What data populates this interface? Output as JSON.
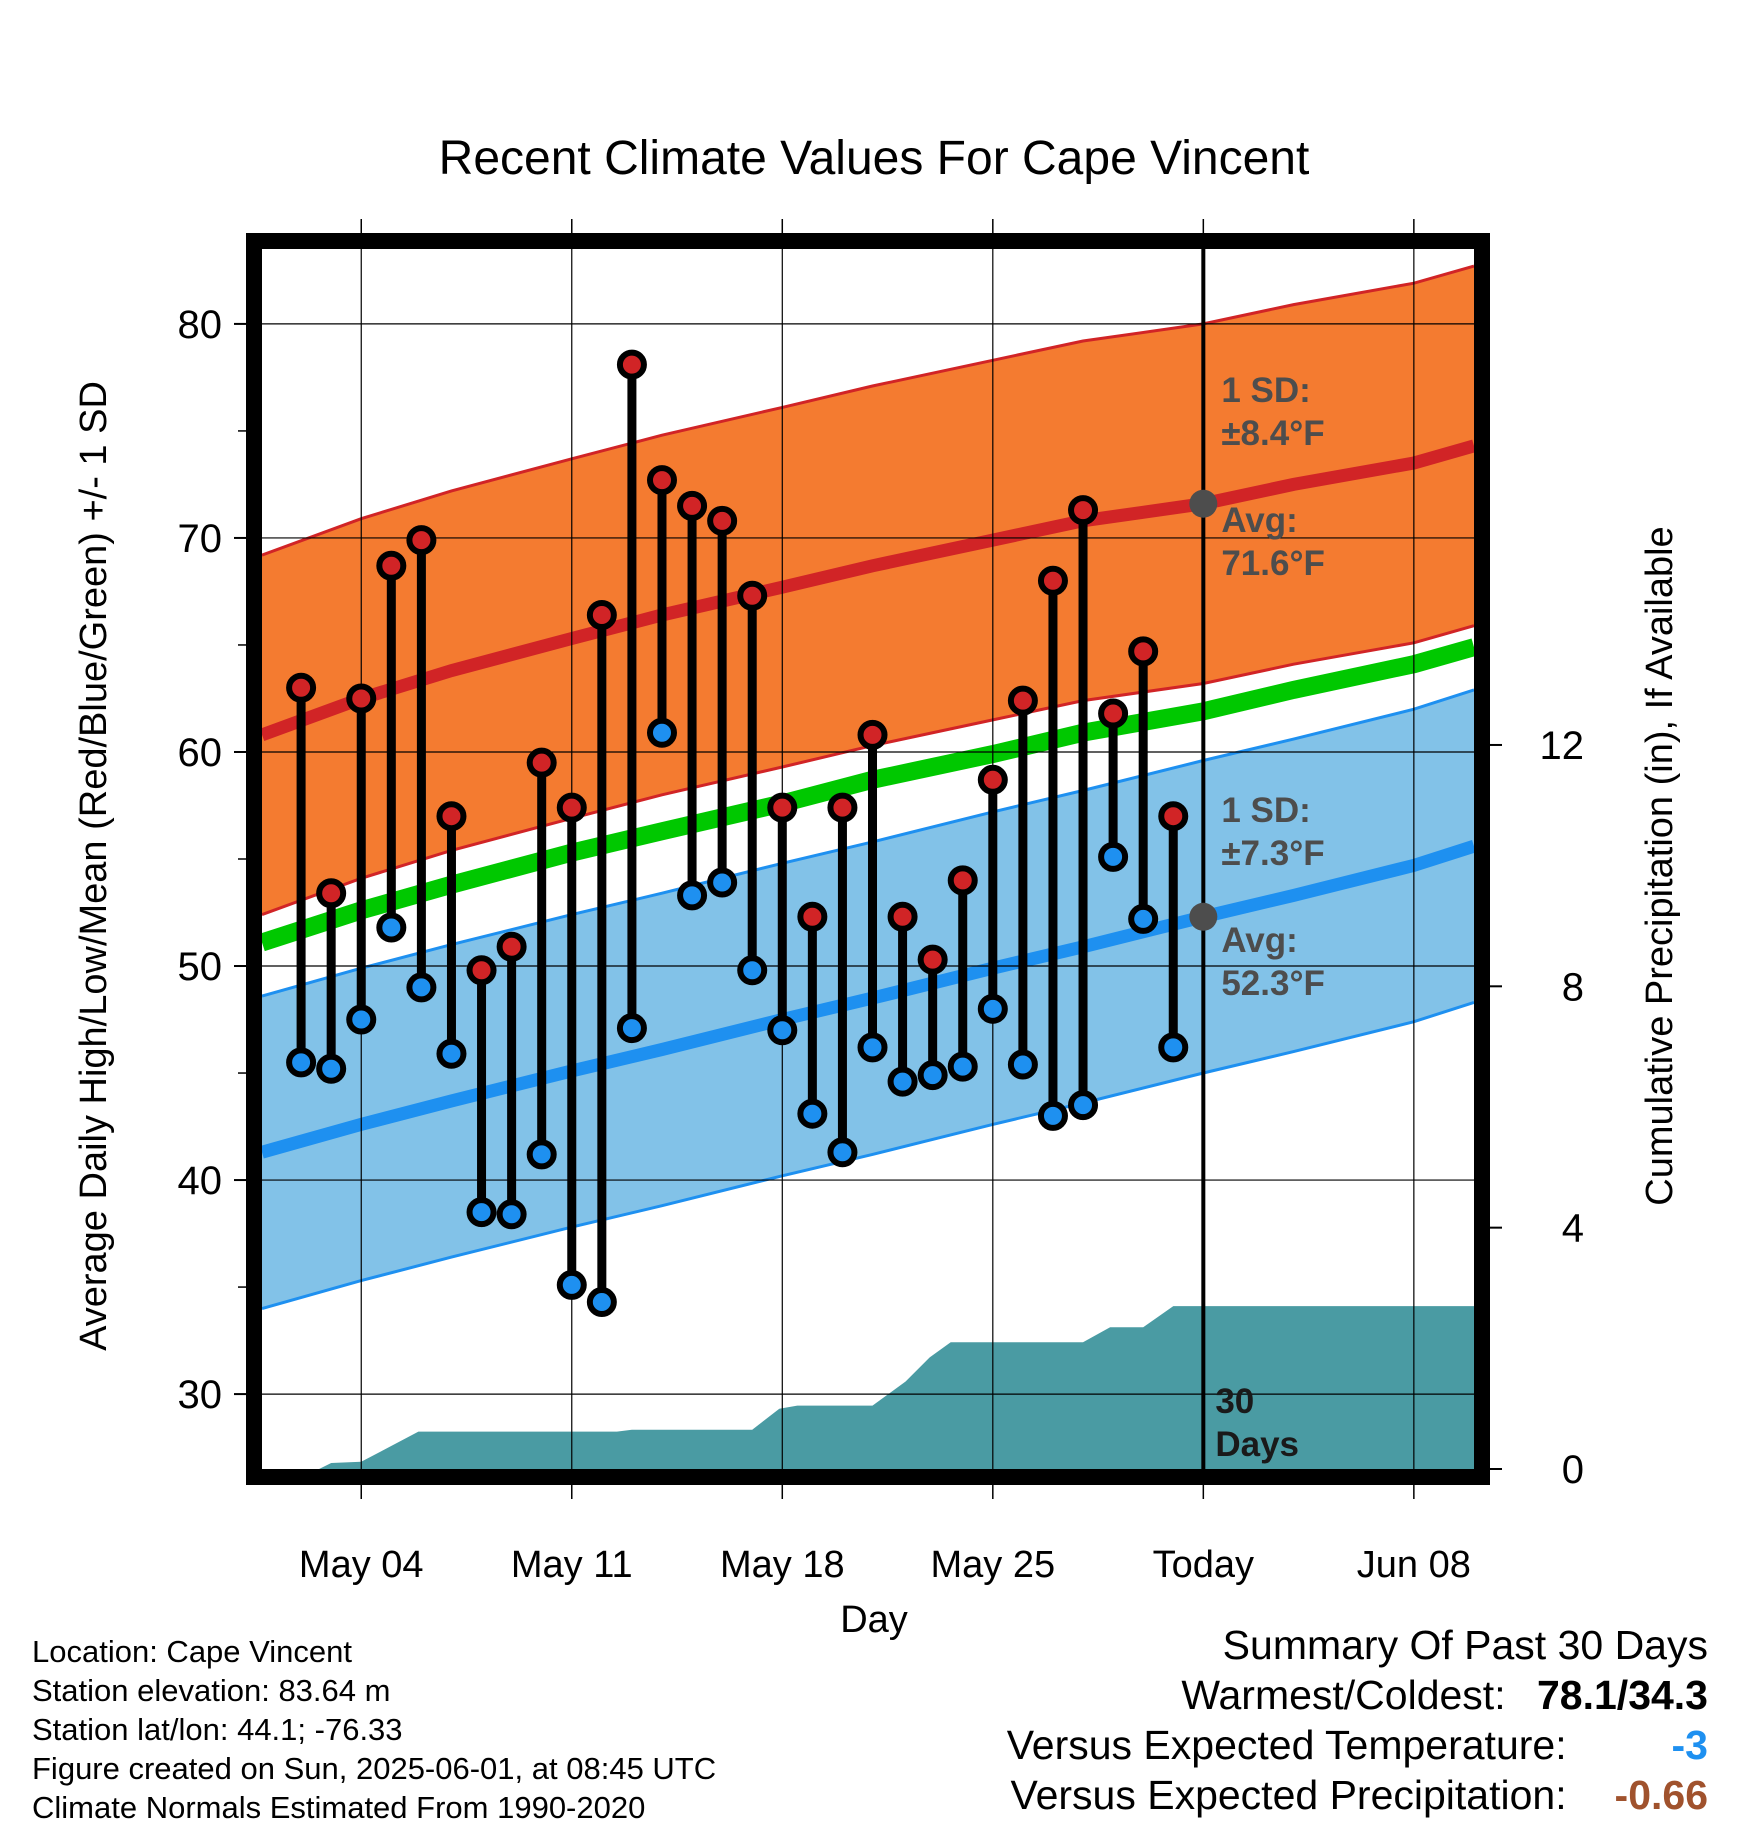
{
  "chart_data": {
    "type": "line",
    "title": "Recent Climate Values For Cape Vincent",
    "xlabel": "Day",
    "ylabel": "Average Daily High/Low/Mean (Red/Blue/Green) +/- 1 SD",
    "y2label": "Cumulative Precipitation (in), If Available",
    "ylim": [
      26.5,
      83.5
    ],
    "y2lim": [
      0,
      20.22
    ],
    "yticks": [
      "30",
      "40",
      "50",
      "60",
      "70",
      "80"
    ],
    "y2ticks": [
      "0",
      "4",
      "8",
      "12"
    ],
    "xticks": [
      {
        "day": 4,
        "label": "May 04"
      },
      {
        "day": 11,
        "label": "May 11"
      },
      {
        "day": 18,
        "label": "May 18"
      },
      {
        "day": 25,
        "label": "May 25"
      },
      {
        "day": 32,
        "label": "Today"
      },
      {
        "day": 39,
        "label": "Jun 08"
      }
    ],
    "xlim": [
      0.7,
      41.0
    ],
    "today_day": 32,
    "colors": {
      "high_band": "#F47B30",
      "high_line": "#D12426",
      "low_band": "#82C2E8",
      "low_line": "#1E90F0",
      "mean_line": "#00C800",
      "precip": "#4A9BA3",
      "high_dot": "#D12426",
      "low_dot": "#1E90F0",
      "annot_gray": "#4D4D4D",
      "warm_brown": "#A0522D",
      "cool_blue": "#1E90F0"
    },
    "normals": {
      "days": [
        0.7,
        4,
        7,
        11,
        14,
        18,
        21,
        25,
        28,
        32,
        35,
        39,
        41.0
      ],
      "avg_high": [
        60.8,
        62.5,
        63.8,
        65.3,
        66.4,
        67.7,
        68.7,
        69.9,
        70.8,
        71.6,
        72.5,
        73.5,
        74.3
      ],
      "avg_low": [
        41.3,
        42.6,
        43.7,
        45.1,
        46.1,
        47.5,
        48.5,
        49.9,
        50.9,
        52.3,
        53.3,
        54.7,
        55.6
      ],
      "avg_mean": [
        51.1,
        52.6,
        53.8,
        55.3,
        56.3,
        57.6,
        58.7,
        59.9,
        60.9,
        61.9,
        62.9,
        64.1,
        64.9
      ],
      "high_sd": 8.4,
      "low_sd": 7.3
    },
    "observations": {
      "days": [
        2,
        3,
        4,
        5,
        6,
        7,
        8,
        9,
        10,
        11,
        12,
        13,
        14,
        15,
        16,
        17,
        18,
        19,
        20,
        21,
        22,
        23,
        24,
        25,
        26,
        27,
        28,
        29,
        30,
        31
      ],
      "highs": [
        63.0,
        53.4,
        62.5,
        68.7,
        69.9,
        57.0,
        49.8,
        50.9,
        59.5,
        57.4,
        66.4,
        78.1,
        72.7,
        71.5,
        70.8,
        67.3,
        57.4,
        52.3,
        57.4,
        60.8,
        52.3,
        50.3,
        54.0,
        58.7,
        62.4,
        68.0,
        71.3,
        61.8,
        64.7,
        57.0
      ],
      "lows": [
        45.5,
        45.2,
        47.5,
        51.8,
        49.0,
        45.9,
        38.5,
        38.4,
        41.2,
        35.1,
        34.3,
        47.1,
        60.9,
        53.3,
        53.9,
        49.8,
        47.0,
        43.1,
        41.3,
        46.2,
        44.6,
        44.9,
        45.3,
        48.0,
        45.4,
        43.0,
        43.5,
        55.1,
        52.2,
        46.2
      ]
    },
    "precip_cumulative": {
      "x": [
        0.7,
        2.6,
        3.0,
        4.0,
        5.9,
        12.5,
        13.0,
        17.0,
        17.9,
        18.5,
        21.0,
        22.1,
        22.9,
        23.6,
        28.0,
        28.9,
        30.0,
        31.0,
        41.0
      ],
      "values": [
        0.0,
        0.0,
        0.1,
        0.12,
        0.62,
        0.62,
        0.65,
        0.65,
        1.0,
        1.05,
        1.05,
        1.45,
        1.85,
        2.1,
        2.1,
        2.35,
        2.35,
        2.7,
        2.7
      ]
    },
    "annotations": {
      "high_sd_label": "1 SD:",
      "high_sd_value": "±8.4°F",
      "high_avg_label": "Avg:",
      "high_avg_value": "71.6°F",
      "low_sd_label": "1 SD:",
      "low_sd_value": "±7.3°F",
      "low_avg_label": "Avg:",
      "low_avg_value": "52.3°F",
      "precip_days": "30",
      "precip_days_label": "Days"
    }
  },
  "footer": {
    "location": "Location: Cape Vincent",
    "elevation": "Station elevation: 83.64 m",
    "latlon": "Station lat/lon: 44.1; -76.33",
    "created": "Figure created on Sun, 2025-06-01, at 08:45 UTC",
    "normals": "Climate Normals Estimated From 1990-2020"
  },
  "summary": {
    "heading": "Summary Of Past 30 Days",
    "warm_cold_label": "Warmest/Coldest:",
    "warm_cold_value": "78.1/34.3",
    "temp_label": "Versus Expected Temperature:",
    "temp_value": "-3",
    "precip_label": "Versus Expected Precipitation:",
    "precip_value": "-0.66"
  }
}
